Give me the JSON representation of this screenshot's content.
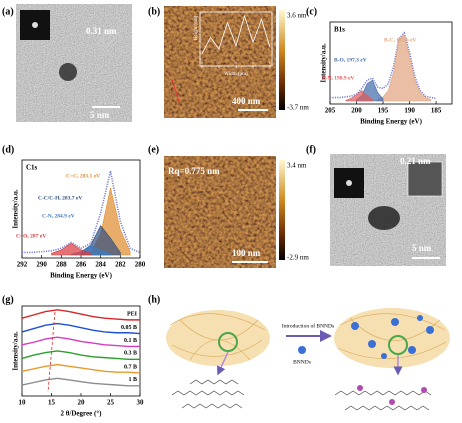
{
  "labels": [
    "(a)",
    "(b)",
    "(c)",
    "(d)",
    "(e)",
    "(f)",
    "(g)",
    "(h)"
  ],
  "a": {
    "lattice": "0.31 nm",
    "scale": "5 nm"
  },
  "b": {
    "colorbar_max": "3.6 nm",
    "colorbar_min": "-3.7 nm",
    "scale": "400 nm",
    "inset": {
      "xlabel": "Width (μm)",
      "ylabel": "Height (nm)",
      "xticks": [
        0,
        2,
        4,
        6,
        8
      ],
      "xlim": [
        0,
        8
      ],
      "x": [
        0,
        1,
        2,
        3,
        4,
        5,
        6,
        7,
        8
      ],
      "values": [
        0.5,
        1.5,
        0.8,
        2.4,
        1.0,
        2.8,
        1.2,
        2.6,
        0.9
      ]
    }
  },
  "e": {
    "roughness": "Rq=0.775 nm",
    "colorbar_max": "3.4 nm",
    "colorbar_min": "-2.9 nm",
    "scale": "100 nm"
  },
  "f": {
    "lattice": "0.21 nm",
    "scale": "5 nm"
  },
  "h": {
    "arrow_label": "Introduction of BNNDs",
    "legend": "BNNDs"
  },
  "chart_data": [
    {
      "type": "area",
      "title": "B1s",
      "xlabel": "Binding Energy (eV)",
      "ylabel": "Intensity/a.u.",
      "xlim": [
        205,
        182
      ],
      "xticks": [
        205,
        200,
        195,
        190,
        185
      ],
      "series": [
        {
          "color": "#7b7fd0",
          "x": [
            205,
            204,
            203,
            202,
            201,
            200,
            199,
            198,
            197,
            196,
            195,
            194,
            193,
            192,
            191,
            190,
            189,
            188,
            187,
            186,
            185
          ],
          "values": [
            5,
            5,
            5,
            6,
            7,
            10,
            18,
            30,
            33,
            20,
            18,
            25,
            50,
            90,
            98,
            70,
            35,
            15,
            7,
            5,
            4
          ]
        },
        {
          "name": "B-C, 191.6 eV",
          "color": "#e0a27e",
          "x": [
            196,
            195,
            194,
            193,
            192,
            191,
            190,
            189,
            188,
            187,
            186
          ],
          "values": [
            2,
            6,
            15,
            42,
            90,
            95,
            65,
            30,
            12,
            5,
            2
          ]
        },
        {
          "name": "B-O, 197.3 eV",
          "color": "#3f6aa8",
          "x": [
            200,
            199,
            198,
            197,
            196,
            195
          ],
          "values": [
            2,
            8,
            25,
            30,
            12,
            3
          ]
        },
        {
          "name": "B-N, 198.9 eV",
          "color": "#e05a5a",
          "x": [
            202,
            201,
            200,
            199,
            198,
            197
          ],
          "values": [
            1,
            4,
            9,
            15,
            8,
            2
          ]
        }
      ]
    },
    {
      "type": "area",
      "title": "C1s",
      "xlabel": "Binding Energy (eV)",
      "ylabel": "Intensity/a.u.",
      "xlim": [
        292,
        280
      ],
      "xticks": [
        292,
        290,
        288,
        286,
        284,
        282,
        280
      ],
      "series": [
        {
          "color": "#7b7fd0",
          "x": [
            292,
            291,
            290,
            289,
            288,
            287,
            286,
            285,
            284,
            283,
            282,
            281,
            280
          ],
          "values": [
            3,
            3,
            4,
            5,
            8,
            15,
            8,
            14,
            50,
            100,
            40,
            8,
            3
          ]
        },
        {
          "name": "C=C, 283.1 eV",
          "color": "#e08a2c",
          "x": [
            285,
            284,
            283,
            282,
            281
          ],
          "values": [
            3,
            25,
            80,
            30,
            4
          ]
        },
        {
          "name": "C-C/C-H, 283.7 eV",
          "color": "#2f4f7f",
          "x": [
            286,
            285,
            284,
            283,
            282
          ],
          "values": [
            2,
            12,
            35,
            20,
            3
          ]
        },
        {
          "name": "C-N, 284.9 eV",
          "color": "#3f7ac0",
          "x": [
            287,
            286,
            285,
            284,
            283
          ],
          "values": [
            1,
            4,
            12,
            6,
            1
          ]
        },
        {
          "name": "C=O, 287 eV",
          "color": "#d9383a",
          "x": [
            289,
            288,
            287,
            286,
            285
          ],
          "values": [
            2,
            6,
            14,
            6,
            2
          ]
        }
      ]
    },
    {
      "type": "line",
      "xlabel": "2 θ/Degree (°)",
      "ylabel": "Intensity/a.u.",
      "xlim": [
        10,
        30
      ],
      "xticks": [
        10,
        15,
        20,
        25,
        30
      ],
      "series": [
        {
          "name": "PEI",
          "color": "#d62728",
          "x": [
            10,
            12,
            14,
            16,
            18,
            20,
            22,
            24,
            26,
            28,
            30
          ],
          "values": [
            10,
            14,
            18,
            20,
            18,
            15,
            12,
            10,
            9,
            8,
            8
          ]
        },
        {
          "name": "0.05 B",
          "color": "#1f4fd6",
          "x": [
            10,
            12,
            14,
            16,
            18,
            20,
            22,
            24,
            26,
            28,
            30
          ],
          "values": [
            9,
            13,
            17,
            19,
            17,
            14,
            11,
            9,
            8,
            8,
            7
          ]
        },
        {
          "name": "0.1 B",
          "color": "#d63bbf",
          "x": [
            10,
            12,
            14,
            16,
            18,
            20,
            22,
            24,
            26,
            28,
            30
          ],
          "values": [
            9,
            12,
            16,
            18,
            16,
            13,
            11,
            9,
            8,
            7,
            7
          ]
        },
        {
          "name": "0.3 B",
          "color": "#2ca02c",
          "x": [
            10,
            12,
            14,
            16,
            18,
            20,
            22,
            24,
            26,
            28,
            30
          ],
          "values": [
            8,
            12,
            15,
            17,
            15,
            12,
            10,
            9,
            8,
            7,
            7
          ]
        },
        {
          "name": "0.7 B",
          "color": "#e69b2e",
          "x": [
            10,
            12,
            14,
            16,
            18,
            20,
            22,
            24,
            26,
            28,
            30
          ],
          "values": [
            8,
            11,
            14,
            16,
            14,
            12,
            10,
            8,
            7,
            7,
            6
          ]
        },
        {
          "name": "1 B",
          "color": "#8c8c8c",
          "x": [
            10,
            12,
            14,
            16,
            18,
            20,
            22,
            24,
            26,
            28,
            30
          ],
          "values": [
            7,
            10,
            13,
            15,
            13,
            11,
            9,
            8,
            7,
            6,
            6
          ]
        }
      ]
    }
  ]
}
